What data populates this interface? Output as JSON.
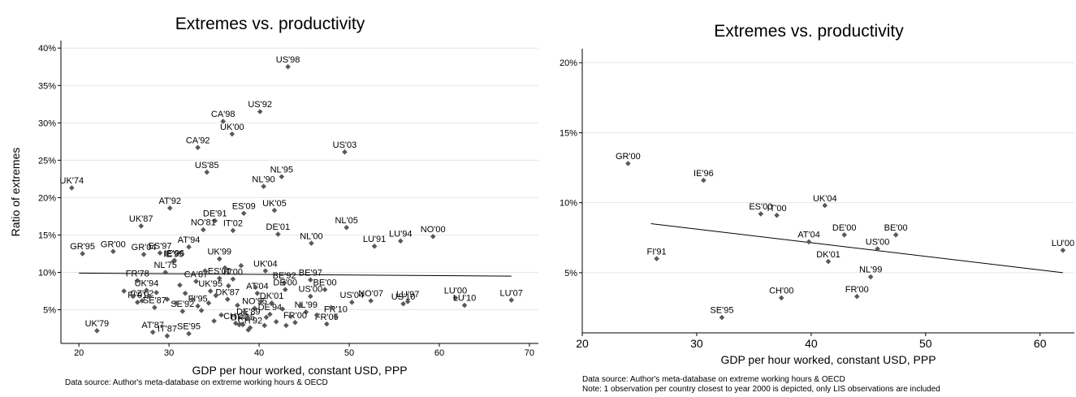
{
  "colors": {
    "marker": "#595959",
    "line": "#000000",
    "grid": "#e6e6e6",
    "text": "#000000"
  },
  "chart_data": [
    {
      "type": "scatter",
      "title": "Extremes vs. productivity",
      "xlabel": "GDP per hour worked, constant USD, PPP",
      "ylabel": "Ratio of extremes",
      "xlim": [
        18,
        71
      ],
      "ylim": [
        0.5,
        41
      ],
      "xticks": [
        20,
        30,
        40,
        50,
        60,
        70
      ],
      "yticks": [
        5,
        10,
        15,
        20,
        25,
        30,
        35,
        40
      ],
      "ytick_labels": [
        "5%",
        "10%",
        "15%",
        "20%",
        "25%",
        "30%",
        "35%",
        "40%"
      ],
      "grid": true,
      "source": "Data source: Author's meta-database on extreme working hours & OECD",
      "fit_line": {
        "x": [
          20,
          68
        ],
        "y": [
          9.9,
          9.5
        ]
      },
      "points": [
        {
          "label": "US'98",
          "x": 43.2,
          "y": 37.5
        },
        {
          "label": "US'92",
          "x": 40.1,
          "y": 31.5
        },
        {
          "label": "CA'98",
          "x": 36.0,
          "y": 30.2
        },
        {
          "label": "UK'00",
          "x": 37.0,
          "y": 28.5
        },
        {
          "label": "CA'92",
          "x": 33.2,
          "y": 26.7
        },
        {
          "label": "US'03",
          "x": 49.5,
          "y": 26.1
        },
        {
          "label": "US'85",
          "x": 34.2,
          "y": 23.4
        },
        {
          "label": "NL'95",
          "x": 42.5,
          "y": 22.8
        },
        {
          "label": "NL'90",
          "x": 40.5,
          "y": 21.5
        },
        {
          "label": "UK'74",
          "x": 19.2,
          "y": 21.3
        },
        {
          "label": "UK'05",
          "x": 41.7,
          "y": 18.3
        },
        {
          "label": "AT'92",
          "x": 30.1,
          "y": 18.6
        },
        {
          "label": "ES'09",
          "x": 38.3,
          "y": 17.9
        },
        {
          "label": "DE'91",
          "x": 35.1,
          "y": 16.9
        },
        {
          "label": "NO'81",
          "x": 33.8,
          "y": 15.7
        },
        {
          "label": "IT'02",
          "x": 37.1,
          "y": 15.6
        },
        {
          "label": "UK'87",
          "x": 26.9,
          "y": 16.2
        },
        {
          "label": "NL'05",
          "x": 49.7,
          "y": 16.0
        },
        {
          "label": "DE'01",
          "x": 42.1,
          "y": 15.1
        },
        {
          "label": "NL'00",
          "x": 45.8,
          "y": 13.9
        },
        {
          "label": "LU'91",
          "x": 52.8,
          "y": 13.5
        },
        {
          "label": "LU'94",
          "x": 55.7,
          "y": 14.2
        },
        {
          "label": "NO'00",
          "x": 59.3,
          "y": 14.8
        },
        {
          "label": "AT'94",
          "x": 32.2,
          "y": 13.4
        },
        {
          "label": "GR'95",
          "x": 20.4,
          "y": 12.5
        },
        {
          "label": "GR'00",
          "x": 23.8,
          "y": 12.8
        },
        {
          "label": "GR'04",
          "x": 27.2,
          "y": 12.4
        },
        {
          "label": "ES'97",
          "x": 29.0,
          "y": 12.6
        },
        {
          "label": "IE'95",
          "x": 30.5,
          "y": 11.5
        },
        {
          "label": "NL'75",
          "x": 29.6,
          "y": 10.0
        },
        {
          "label": "UK'99",
          "x": 35.6,
          "y": 11.8
        },
        {
          "label": "FR'78",
          "x": 26.5,
          "y": 8.9
        },
        {
          "label": "CA'87",
          "x": 33.0,
          "y": 8.8
        },
        {
          "label": "UK'04",
          "x": 40.7,
          "y": 10.2
        },
        {
          "label": "BE'97",
          "x": 45.7,
          "y": 9.0
        },
        {
          "label": "BE'92",
          "x": 42.8,
          "y": 8.6
        },
        {
          "label": "BE'00",
          "x": 47.3,
          "y": 7.7
        },
        {
          "label": "US'00",
          "x": 45.7,
          "y": 6.8
        },
        {
          "label": "DK'01",
          "x": 41.4,
          "y": 5.9
        },
        {
          "label": "NL'99",
          "x": 45.2,
          "y": 4.7
        },
        {
          "label": "US'04",
          "x": 50.3,
          "y": 6.0
        },
        {
          "label": "NO'07",
          "x": 52.4,
          "y": 6.2
        },
        {
          "label": "US'10",
          "x": 56.0,
          "y": 5.8
        },
        {
          "label": "LU'97",
          "x": 56.5,
          "y": 6.1
        },
        {
          "label": "LU'00",
          "x": 61.8,
          "y": 6.6
        },
        {
          "label": "LU'10",
          "x": 62.8,
          "y": 5.6
        },
        {
          "label": "LU'07",
          "x": 68.0,
          "y": 6.3
        },
        {
          "label": "FR'05",
          "x": 47.5,
          "y": 3.1
        },
        {
          "label": "FR'10",
          "x": 48.5,
          "y": 4.1
        },
        {
          "label": "UK'79",
          "x": 22.0,
          "y": 2.2
        },
        {
          "label": "AT'87",
          "x": 28.2,
          "y": 2.0
        },
        {
          "label": "IT'87",
          "x": 29.8,
          "y": 1.5
        },
        {
          "label": "SE'95",
          "x": 32.2,
          "y": 1.8
        },
        {
          "label": "CH'00",
          "x": 37.4,
          "y": 3.2
        },
        {
          "label": "SE'87",
          "x": 28.4,
          "y": 5.3
        },
        {
          "label": "CZ'02",
          "x": 27.0,
          "y": 6.2
        },
        {
          "label": "UK'94",
          "x": 27.5,
          "y": 7.6
        },
        {
          "label": "ES'00",
          "x": 35.6,
          "y": 9.2
        },
        {
          "label": "IT'00",
          "x": 37.1,
          "y": 9.1
        },
        {
          "label": "AT'04",
          "x": 39.8,
          "y": 7.2
        },
        {
          "label": "DE'00",
          "x": 42.9,
          "y": 7.7
        },
        {
          "label": "FR'00",
          "x": 44.0,
          "y": 3.3
        },
        {
          "label": "FI'91",
          "x": 26.5,
          "y": 6.0
        },
        {
          "label": "IE'96",
          "x": 30.6,
          "y": 11.6
        },
        {
          "label": "SE'92",
          "x": 31.5,
          "y": 4.8
        },
        {
          "label": "FI'95",
          "x": 33.2,
          "y": 5.5
        },
        {
          "label": "UK'95",
          "x": 34.6,
          "y": 7.5
        },
        {
          "label": "DK'87",
          "x": 36.5,
          "y": 6.4
        },
        {
          "label": "NO'95",
          "x": 39.5,
          "y": 5.2
        },
        {
          "label": "DK'95",
          "x": 38.2,
          "y": 3.0
        },
        {
          "label": "CH'92",
          "x": 39.0,
          "y": 2.6
        },
        {
          "label": "DE'94",
          "x": 41.2,
          "y": 4.4
        },
        {
          "label": "DE'89",
          "x": 38.8,
          "y": 3.8
        },
        {
          "label": "",
          "x": 25.0,
          "y": 7.5
        },
        {
          "label": "",
          "x": 26.0,
          "y": 6.8
        },
        {
          "label": "",
          "x": 27.8,
          "y": 6.8
        },
        {
          "label": "",
          "x": 28.6,
          "y": 7.3
        },
        {
          "label": "",
          "x": 29.8,
          "y": 6.4
        },
        {
          "label": "",
          "x": 30.8,
          "y": 5.9
        },
        {
          "label": "",
          "x": 31.8,
          "y": 7.2
        },
        {
          "label": "",
          "x": 32.6,
          "y": 6.4
        },
        {
          "label": "",
          "x": 33.6,
          "y": 4.9
        },
        {
          "label": "",
          "x": 34.4,
          "y": 5.9
        },
        {
          "label": "",
          "x": 35.2,
          "y": 6.9
        },
        {
          "label": "",
          "x": 35.8,
          "y": 4.3
        },
        {
          "label": "",
          "x": 36.6,
          "y": 8.2
        },
        {
          "label": "",
          "x": 37.6,
          "y": 5.6
        },
        {
          "label": "",
          "x": 38.4,
          "y": 4.7
        },
        {
          "label": "",
          "x": 38.8,
          "y": 2.3
        },
        {
          "label": "",
          "x": 39.6,
          "y": 8.0
        },
        {
          "label": "",
          "x": 40.2,
          "y": 6.1
        },
        {
          "label": "",
          "x": 40.8,
          "y": 4.0
        },
        {
          "label": "",
          "x": 41.9,
          "y": 3.4
        },
        {
          "label": "",
          "x": 42.6,
          "y": 5.1
        },
        {
          "label": "",
          "x": 43.5,
          "y": 4.1
        },
        {
          "label": "",
          "x": 44.6,
          "y": 5.6
        },
        {
          "label": "",
          "x": 46.4,
          "y": 4.3
        },
        {
          "label": "",
          "x": 48.0,
          "y": 5.3
        },
        {
          "label": "",
          "x": 36.2,
          "y": 10.6
        },
        {
          "label": "",
          "x": 34.0,
          "y": 10.2
        },
        {
          "label": "",
          "x": 38.0,
          "y": 10.9
        },
        {
          "label": "",
          "x": 31.2,
          "y": 8.3
        },
        {
          "label": "",
          "x": 35.0,
          "y": 3.5
        },
        {
          "label": "",
          "x": 37.8,
          "y": 3.0
        },
        {
          "label": "",
          "x": 40.6,
          "y": 2.9
        },
        {
          "label": "",
          "x": 43.0,
          "y": 2.9
        }
      ]
    },
    {
      "type": "scatter",
      "title": "Extremes vs. productivity",
      "xlabel": "GDP per hour worked, constant USD, PPP",
      "ylabel": "",
      "xlim": [
        20,
        63
      ],
      "ylim": [
        0.7,
        21.0
      ],
      "xticks": [
        20,
        30,
        40,
        50,
        60
      ],
      "yticks": [
        5,
        10,
        15,
        20
      ],
      "ytick_labels": [
        "5%",
        "10%",
        "15%",
        "20%"
      ],
      "grid": true,
      "source": "Data source: Author's meta-database on extreme working hours & OECD",
      "note": "Note: 1 observation per country closest to year 2000 is depicted, only LIS observations are included",
      "fit_line": {
        "x": [
          26,
          62
        ],
        "y": [
          8.5,
          5.0
        ]
      },
      "points": [
        {
          "label": "GR'00",
          "x": 24.0,
          "y": 12.8
        },
        {
          "label": "IE'96",
          "x": 30.6,
          "y": 11.6
        },
        {
          "label": "ES'00",
          "x": 35.6,
          "y": 9.2
        },
        {
          "label": "IT'00",
          "x": 37.0,
          "y": 9.1
        },
        {
          "label": "UK'04",
          "x": 41.2,
          "y": 9.8
        },
        {
          "label": "DE'00",
          "x": 42.9,
          "y": 7.7
        },
        {
          "label": "BE'00",
          "x": 47.4,
          "y": 7.7
        },
        {
          "label": "AT'04",
          "x": 39.8,
          "y": 7.2
        },
        {
          "label": "US'00",
          "x": 45.8,
          "y": 6.7
        },
        {
          "label": "DK'01",
          "x": 41.5,
          "y": 5.8
        },
        {
          "label": "FI'91",
          "x": 26.5,
          "y": 6.0
        },
        {
          "label": "LU'00",
          "x": 62.0,
          "y": 6.6
        },
        {
          "label": "NL'99",
          "x": 45.2,
          "y": 4.7
        },
        {
          "label": "CH'00",
          "x": 37.4,
          "y": 3.2
        },
        {
          "label": "FR'00",
          "x": 44.0,
          "y": 3.3
        },
        {
          "label": "SE'95",
          "x": 32.2,
          "y": 1.8
        }
      ]
    }
  ]
}
